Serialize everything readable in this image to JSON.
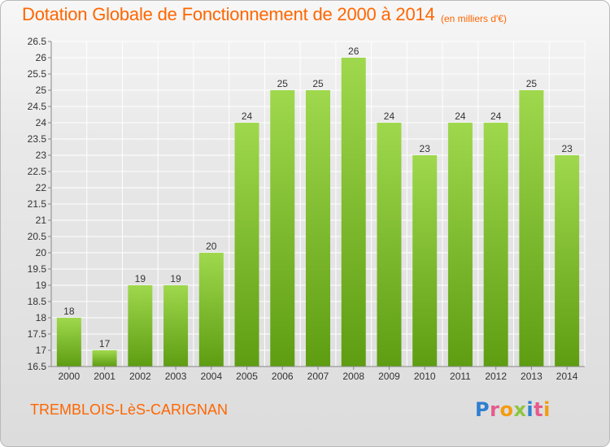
{
  "header": {
    "title": "Dotation Globale de Fonctionnement de 2000 à 2014",
    "subtitle": "(en milliers d'€)"
  },
  "footer": {
    "town": "TREMBLOIS-LèS-CARIGNAN"
  },
  "logo": {
    "text": "Proxiti",
    "letters": [
      {
        "char": "P",
        "color": "#2f7fd0"
      },
      {
        "char": "r",
        "color": "#e65a8c"
      },
      {
        "char": "o",
        "color": "#f39c12"
      },
      {
        "char": "x",
        "color": "#8cc63f"
      },
      {
        "char": "i",
        "color": "#2f7fd0"
      },
      {
        "char": "t",
        "color": "#e65a8c"
      },
      {
        "char": "i",
        "color": "#f39c12"
      }
    ]
  },
  "colors": {
    "accent": "#ff6600",
    "bar_top": "#9fd84d",
    "bar_bottom": "#5e9d12",
    "axis": "#888888",
    "grid": "#ffffff"
  },
  "chart_data": {
    "type": "bar",
    "categories": [
      "2000",
      "2001",
      "2002",
      "2003",
      "2004",
      "2005",
      "2006",
      "2007",
      "2008",
      "2009",
      "2010",
      "2011",
      "2012",
      "2013",
      "2014"
    ],
    "values": [
      18,
      17,
      19,
      19,
      20,
      24,
      25,
      25,
      26,
      24,
      23,
      24,
      24,
      25,
      23
    ],
    "value_labels": [
      "18",
      "17",
      "19",
      "19",
      "20",
      "24",
      "25",
      "25",
      "26",
      "24",
      "23",
      "24",
      "24",
      "25",
      "23"
    ],
    "ylim": [
      16.5,
      26.5
    ],
    "ytick_step": 0.5,
    "ytick_labels": [
      "16.5",
      "17",
      "17.5",
      "18",
      "18.5",
      "19",
      "19.5",
      "20",
      "20.5",
      "21",
      "21.5",
      "22",
      "22.5",
      "23",
      "23.5",
      "24",
      "24.5",
      "25",
      "25.5",
      "26",
      "26.5"
    ],
    "grid": true,
    "legend": "none"
  }
}
